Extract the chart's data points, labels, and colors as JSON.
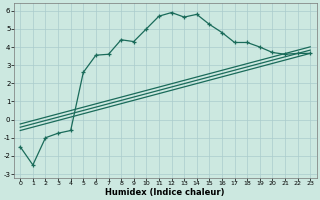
{
  "xlabel": "Humidex (Indice chaleur)",
  "background_color": "#cce8e0",
  "grid_color": "#aacccc",
  "line_color": "#1a6b5a",
  "xlim": [
    -0.5,
    23.5
  ],
  "ylim": [
    -3.2,
    6.4
  ],
  "xticks": [
    0,
    1,
    2,
    3,
    4,
    5,
    6,
    7,
    8,
    9,
    10,
    11,
    12,
    13,
    14,
    15,
    16,
    17,
    18,
    19,
    20,
    21,
    22,
    23
  ],
  "yticks": [
    -3,
    -2,
    -1,
    0,
    1,
    2,
    3,
    4,
    5,
    6
  ],
  "main_x": [
    0,
    1,
    2,
    3,
    4,
    5,
    6,
    7,
    8,
    9,
    10,
    11,
    12,
    13,
    14,
    15,
    16,
    17,
    18,
    19,
    20,
    21,
    22,
    23
  ],
  "main_y": [
    -1.5,
    -2.5,
    -1.0,
    -0.75,
    -0.6,
    2.6,
    3.55,
    3.6,
    4.4,
    4.3,
    5.0,
    5.7,
    5.9,
    5.65,
    5.8,
    5.25,
    4.8,
    4.25,
    4.25,
    4.0,
    3.7,
    3.6,
    3.65,
    3.65
  ],
  "line1_x": [
    0,
    23
  ],
  "line1_y": [
    -0.6,
    3.65
  ],
  "line2_x": [
    0,
    23
  ],
  "line2_y": [
    -0.6,
    3.65
  ],
  "line3_x": [
    0,
    23
  ],
  "line3_y": [
    -0.6,
    3.65
  ],
  "line_offsets": [
    0.0,
    0.18,
    0.36
  ]
}
